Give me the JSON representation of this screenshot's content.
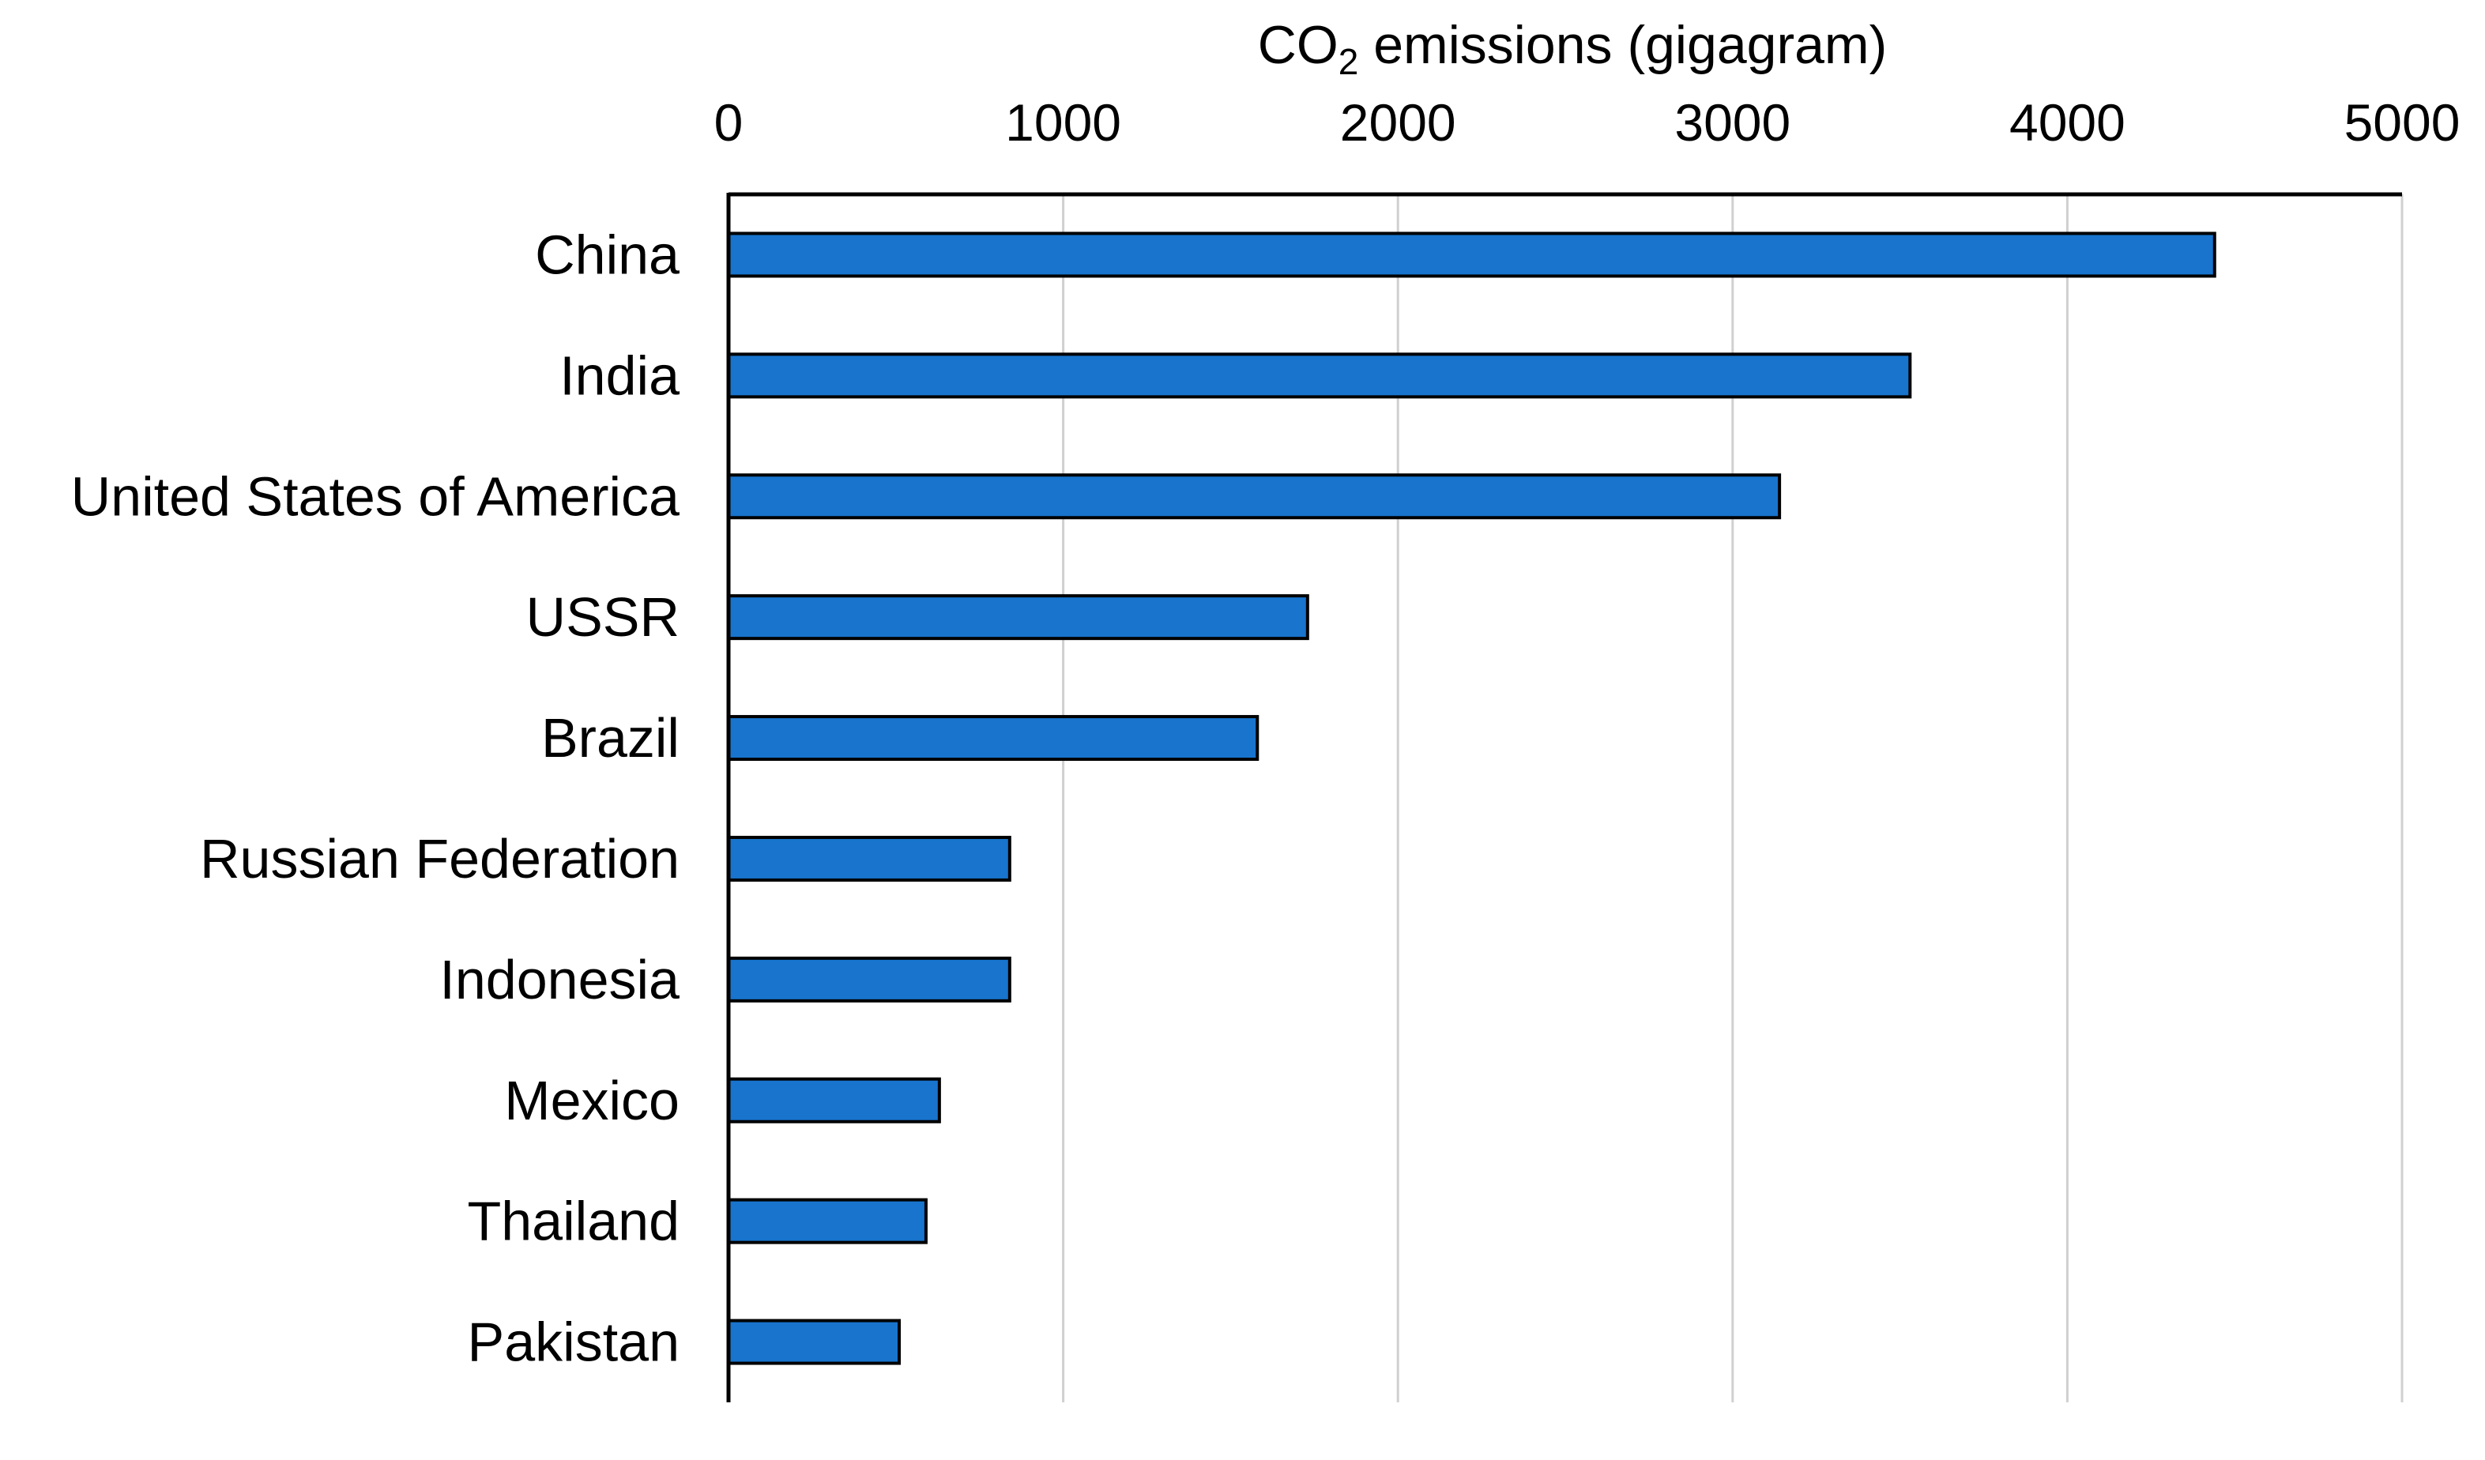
{
  "chart_data": {
    "type": "bar",
    "orientation": "horizontal",
    "xlabel": {
      "prefix": "CO",
      "subscript": "2",
      "suffix": " emissions (gigagram)"
    },
    "xlim": [
      0,
      5000
    ],
    "xticks": [
      0,
      1000,
      2000,
      3000,
      4000,
      5000
    ],
    "x_axis_position": "top",
    "grid": "vertical",
    "bar_color": "#1874CD",
    "categories": [
      "China",
      "India",
      "United States of America",
      "USSR",
      "Brazil",
      "Russian Federation",
      "Indonesia",
      "Mexico",
      "Thailand",
      "Pakistan"
    ],
    "values": [
      4440,
      3530,
      3140,
      1730,
      1580,
      840,
      840,
      630,
      590,
      510
    ]
  }
}
